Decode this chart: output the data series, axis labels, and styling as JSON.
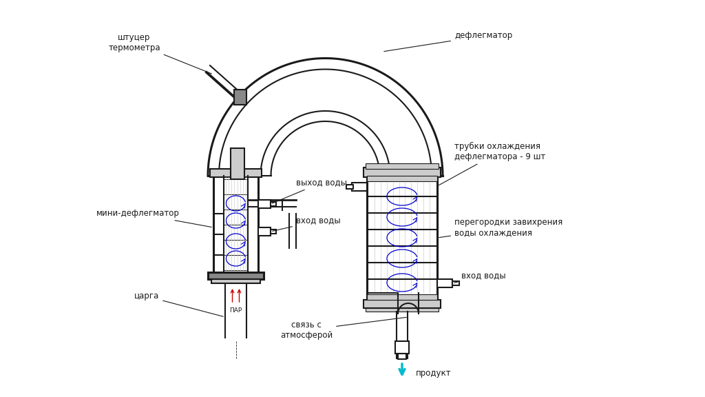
{
  "bg_color": "#ffffff",
  "line_color": "#1a1a1a",
  "blue_color": "#0000cc",
  "red_color": "#cc0000",
  "cyan_color": "#00bbcc",
  "gray1": "#cccccc",
  "gray2": "#888888",
  "gray3": "#444444",
  "labels": {
    "shtutser": "штуцер\nтермометра",
    "deflegmator": "дефлегматор",
    "mini_deflegmator": "мини-дефлегматор",
    "trubki": "трубки охлаждения\nдефлегматора - 9 шт",
    "peregorodki": "перегородки завихрения\nводы охлаждения",
    "vyhod_vody": "выход воды",
    "vhod_vody1": "вход воды",
    "vhod_vody2": "вход воды",
    "svyaz": "связь с\nатмосферой",
    "tsarga": "царга",
    "par": "ПАР",
    "produkt": "продукт"
  },
  "fontsize": 8.5,
  "lw_thick": 2.2,
  "lw_med": 1.5,
  "lw_thin": 0.8
}
